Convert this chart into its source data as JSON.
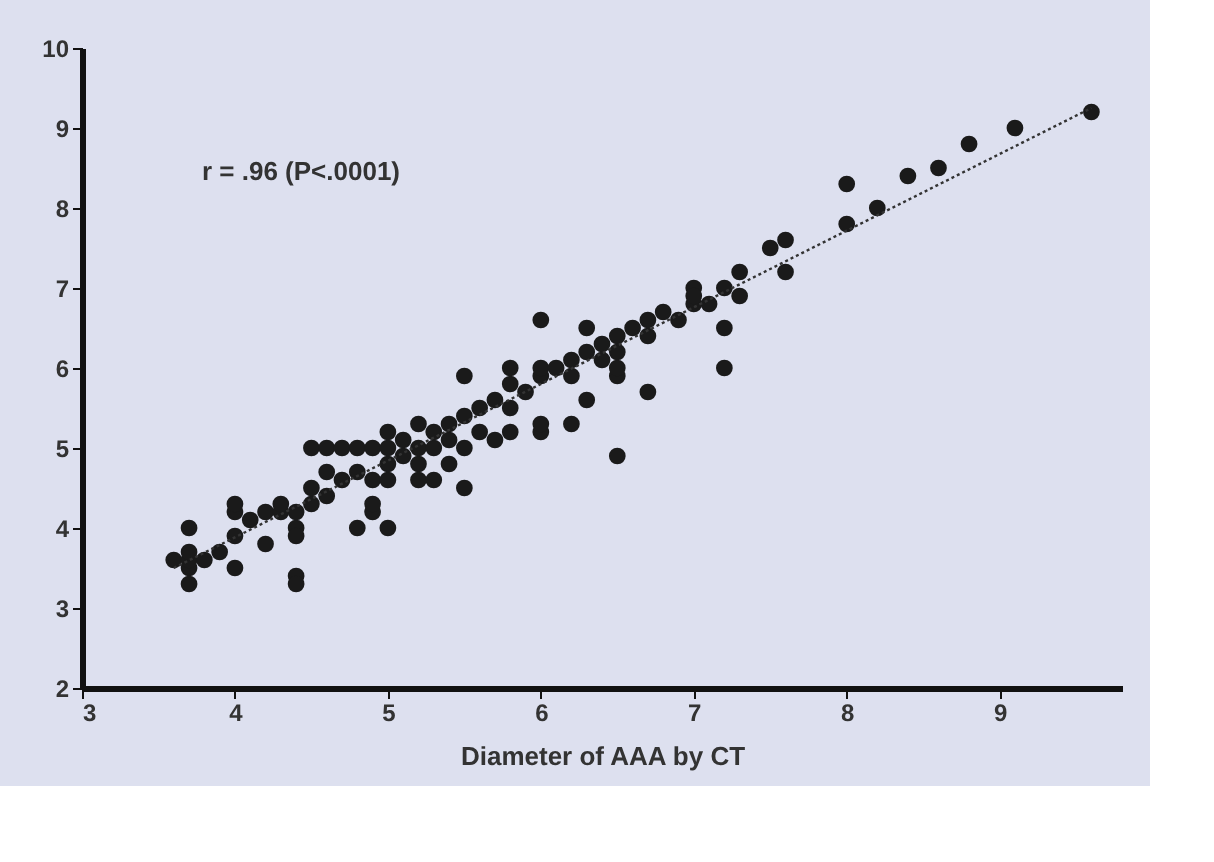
{
  "chart_data": {
    "type": "scatter",
    "xlabel": "Diameter of AAA by CT",
    "annotations": [
      "r = .96 (P<.0001)"
    ],
    "xlim": [
      3,
      9.8
    ],
    "ylim": [
      2,
      10
    ],
    "xticks": [
      3,
      4,
      5,
      6,
      7,
      8,
      9
    ],
    "yticks": [
      2,
      3,
      4,
      5,
      6,
      7,
      8,
      9,
      10
    ],
    "grid": false,
    "marker": "circle",
    "series": [
      {
        "color": "#1a1a1a",
        "x": [
          3.6,
          3.7,
          3.7,
          3.7,
          3.7,
          3.7,
          3.8,
          3.9,
          4.0,
          4.0,
          4.0,
          4.0,
          4.1,
          4.2,
          4.2,
          4.3,
          4.3,
          4.4,
          4.4,
          4.4,
          4.4,
          4.4,
          4.5,
          4.5,
          4.5,
          4.6,
          4.6,
          4.6,
          4.7,
          4.7,
          4.8,
          4.8,
          4.8,
          4.9,
          4.9,
          4.9,
          4.9,
          5.0,
          5.0,
          5.0,
          5.0,
          5.0,
          5.1,
          5.1,
          5.2,
          5.2,
          5.2,
          5.2,
          5.3,
          5.3,
          5.3,
          5.4,
          5.4,
          5.4,
          5.5,
          5.5,
          5.5,
          5.5,
          5.6,
          5.6,
          5.7,
          5.7,
          5.8,
          5.8,
          5.8,
          5.8,
          5.9,
          6.0,
          6.0,
          6.0,
          6.0,
          6.0,
          6.1,
          6.2,
          6.2,
          6.2,
          6.3,
          6.3,
          6.3,
          6.4,
          6.4,
          6.5,
          6.5,
          6.5,
          6.5,
          6.5,
          6.6,
          6.7,
          6.7,
          6.7,
          6.8,
          6.9,
          7.0,
          7.0,
          7.0,
          7.1,
          7.2,
          7.2,
          7.2,
          7.3,
          7.3,
          7.5,
          7.6,
          7.6,
          8.0,
          8.0,
          8.2,
          8.4,
          8.6,
          8.8,
          9.1,
          9.6
        ],
        "values": [
          3.6,
          3.5,
          3.6,
          3.7,
          4.0,
          3.3,
          3.6,
          3.7,
          3.9,
          3.5,
          4.2,
          4.3,
          4.1,
          3.8,
          4.2,
          4.2,
          4.3,
          4.0,
          3.9,
          3.4,
          3.3,
          4.2,
          4.3,
          4.5,
          5.0,
          5.0,
          4.4,
          4.7,
          4.6,
          5.0,
          4.7,
          5.0,
          4.0,
          4.2,
          4.3,
          4.6,
          5.0,
          4.0,
          4.6,
          4.8,
          5.2,
          5.0,
          4.9,
          5.1,
          4.8,
          5.0,
          4.6,
          5.3,
          4.6,
          5.2,
          5.0,
          5.1,
          4.8,
          5.3,
          5.0,
          5.4,
          5.9,
          4.5,
          5.2,
          5.5,
          5.1,
          5.6,
          5.2,
          5.8,
          6.0,
          5.5,
          5.7,
          5.9,
          5.2,
          5.3,
          6.6,
          6.0,
          6.0,
          5.9,
          6.1,
          5.3,
          6.2,
          5.6,
          6.5,
          6.3,
          6.1,
          6.4,
          5.9,
          6.0,
          4.9,
          6.2,
          6.5,
          6.4,
          6.6,
          5.7,
          6.7,
          6.6,
          7.0,
          6.8,
          6.9,
          6.8,
          7.0,
          6.5,
          6.0,
          7.2,
          6.9,
          7.5,
          7.6,
          7.2,
          8.3,
          7.8,
          8.0,
          8.4,
          8.5,
          8.8,
          9.0,
          9.2
        ]
      },
      {
        "type": "line",
        "color": "#333333",
        "line_style": "dotted",
        "marker": "none",
        "x": [
          3.6,
          9.6
        ],
        "values": [
          3.5,
          9.25
        ]
      }
    ]
  }
}
